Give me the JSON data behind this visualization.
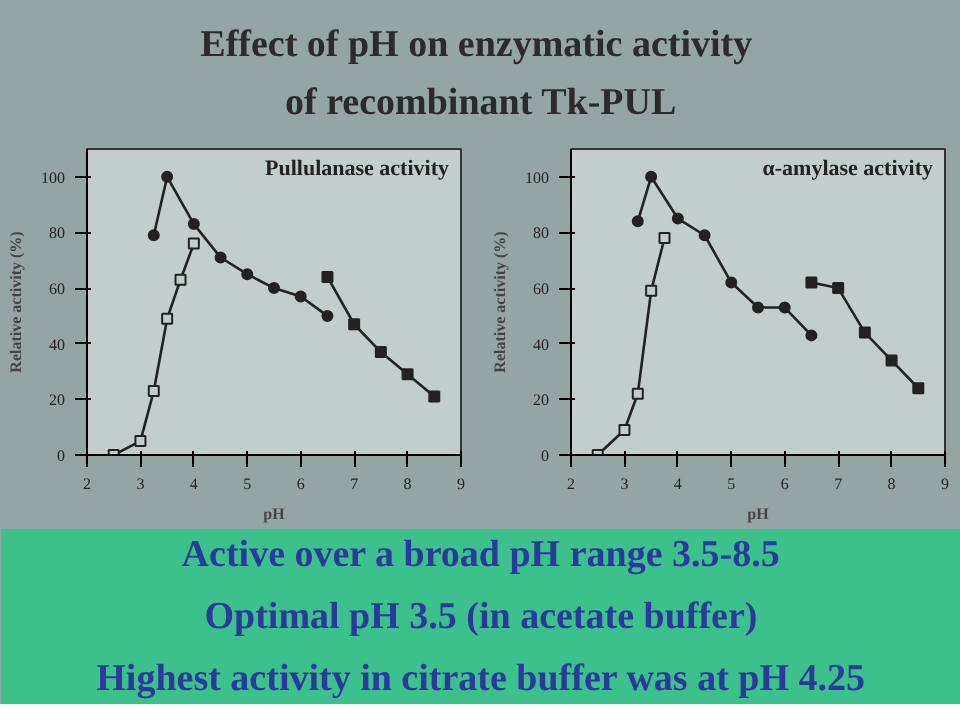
{
  "chart_data": [
    {
      "type": "other",
      "title": "Effect of pH  on enzymatic activity of recombinant Tk-PUL",
      "annotations": [
        "Active over a broad pH range 3.5-8.5",
        "Optimal pH 3.5 (in acetate buffer)",
        "Highest activity in citrate buffer was at pH 4.25"
      ]
    },
    {
      "type": "line",
      "title": "Pullulanase activity",
      "xlabel": "pH",
      "ylabel": "Relative activity (%)",
      "xlim": [
        2,
        9
      ],
      "ylim": [
        0,
        110
      ],
      "xticks": [
        2,
        3,
        4,
        5,
        6,
        7,
        8,
        9
      ],
      "yticks": [
        0,
        20,
        40,
        60,
        80,
        100
      ],
      "series": [
        {
          "color": "#222222",
          "marker": "square_open",
          "x": [
            2.5,
            3.0,
            3.25,
            3.5,
            3.75,
            4.0
          ],
          "values": [
            0,
            5,
            23,
            49,
            63,
            76
          ]
        },
        {
          "color": "#222222",
          "marker": "circle",
          "x": [
            3.25,
            3.5,
            4.0,
            4.5,
            5.0,
            5.5,
            6.0,
            6.5
          ],
          "values": [
            79,
            100,
            83,
            71,
            65,
            60,
            57,
            50
          ]
        },
        {
          "color": "#222222",
          "marker": "square",
          "x": [
            6.5,
            7.0,
            7.5,
            8.0,
            8.5
          ],
          "values": [
            64,
            47,
            37,
            29,
            21
          ]
        }
      ]
    },
    {
      "type": "line",
      "title": "α-amylase activity",
      "xlabel": "pH",
      "ylabel": "Relative activity (%)",
      "xlim": [
        2,
        9
      ],
      "ylim": [
        0,
        110
      ],
      "xticks": [
        2,
        3,
        4,
        5,
        6,
        7,
        8,
        9
      ],
      "yticks": [
        0,
        20,
        40,
        60,
        80,
        100
      ],
      "series": [
        {
          "color": "#222222",
          "marker": "square_open",
          "x": [
            2.5,
            3.0,
            3.25,
            3.5,
            3.75
          ],
          "values": [
            0,
            9,
            22,
            59,
            78
          ]
        },
        {
          "color": "#222222",
          "marker": "circle",
          "x": [
            3.25,
            3.5,
            4.0,
            4.5,
            5.0,
            5.5,
            6.0,
            6.5
          ],
          "values": [
            84,
            100,
            85,
            79,
            62,
            53,
            53,
            43
          ]
        },
        {
          "color": "#222222",
          "marker": "square",
          "x": [
            6.5,
            7.0,
            7.5,
            8.0,
            8.5
          ],
          "values": [
            62,
            60,
            44,
            34,
            24
          ]
        }
      ]
    }
  ]
}
